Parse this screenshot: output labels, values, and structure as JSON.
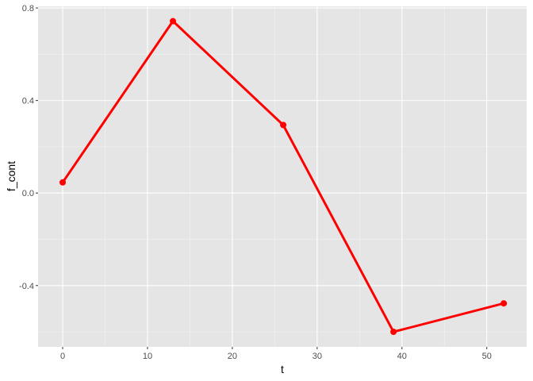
{
  "chart_data": {
    "type": "line",
    "title": "",
    "xlabel": "t",
    "ylabel": "f_cont",
    "x": [
      0,
      13,
      26,
      39,
      52
    ],
    "series": [
      {
        "values": [
          0.046,
          0.743,
          0.294,
          -0.6,
          -0.477
        ],
        "color": "#ff0000"
      }
    ],
    "xlim": [
      -2.9,
      54.7
    ],
    "ylim": [
      -0.665,
      0.807
    ],
    "xticks": [
      "0",
      "10",
      "20",
      "30",
      "40",
      "50"
    ],
    "xtick_values": [
      0,
      10,
      20,
      30,
      40,
      50
    ],
    "yticks": [
      "-0.4",
      "0.0",
      "0.4",
      "0.8"
    ],
    "ytick_values": [
      -0.4,
      0.0,
      0.4,
      0.8
    ],
    "grid": true,
    "panel_background": "#e5e5e5",
    "legend": "none"
  }
}
